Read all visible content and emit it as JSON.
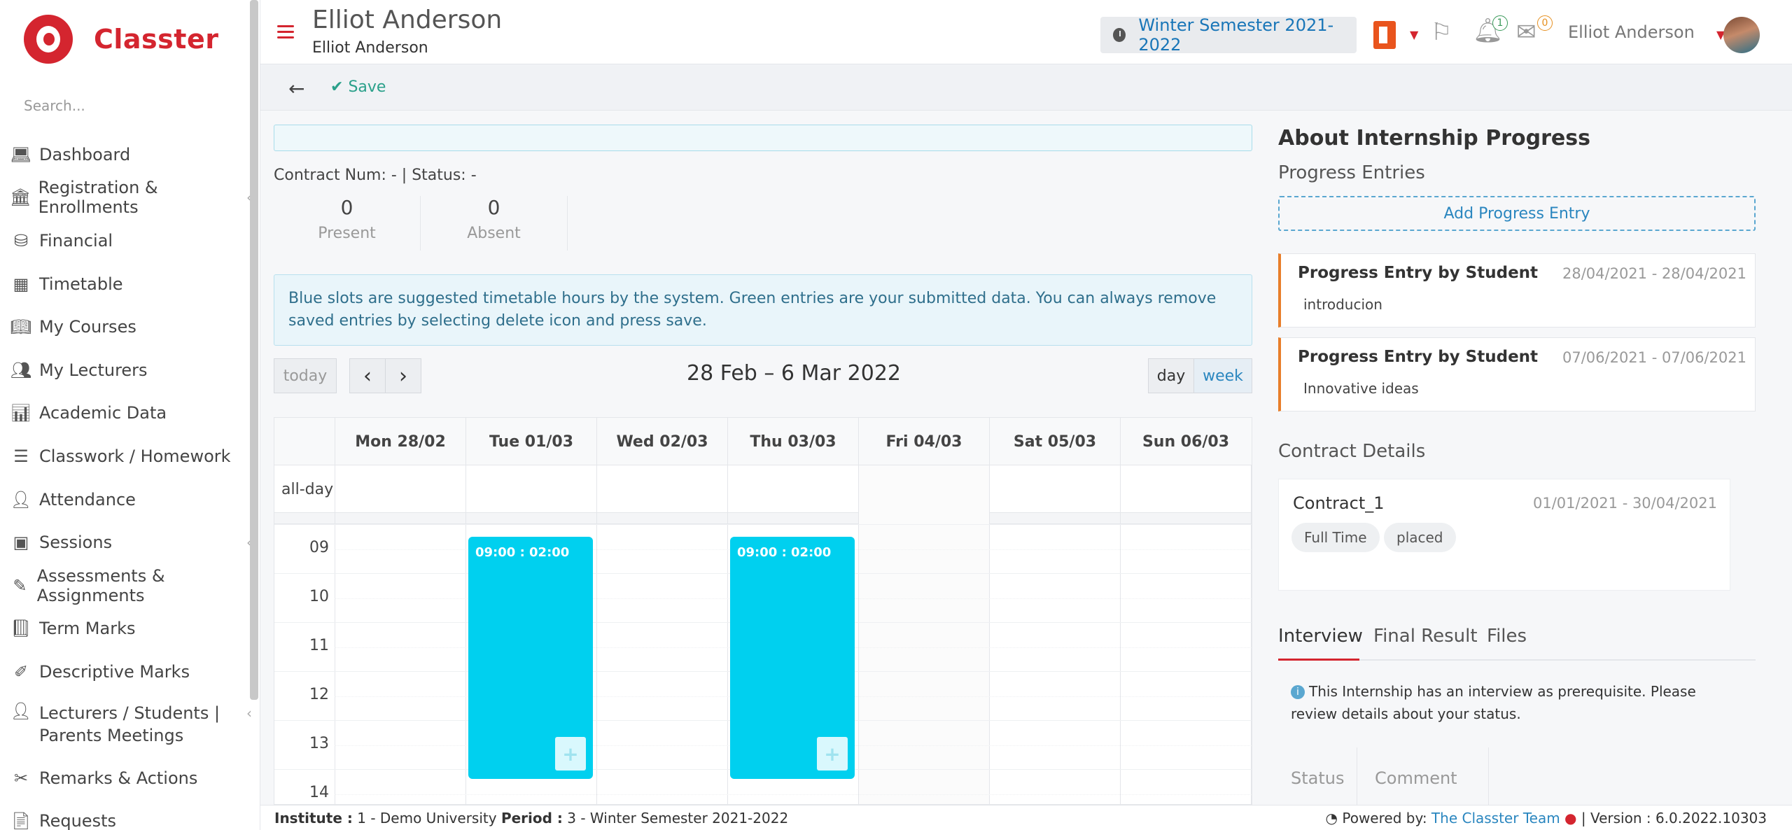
{
  "brand": {
    "name": "Classter"
  },
  "search": {
    "placeholder": "Search..."
  },
  "sidebar": {
    "items": [
      {
        "label": "Dashboard",
        "icon": "laptop-icon"
      },
      {
        "label": "Registration & Enrollments",
        "icon": "bank-icon"
      },
      {
        "label": "Financial",
        "icon": "coins-icon"
      },
      {
        "label": "Timetable",
        "icon": "calendar-icon"
      },
      {
        "label": "My Courses",
        "icon": "book-icon"
      },
      {
        "label": "My Lecturers",
        "icon": "users-icon"
      },
      {
        "label": "Academic Data",
        "icon": "chart-icon"
      },
      {
        "label": "Classwork / Homework",
        "icon": "list-icon"
      },
      {
        "label": "Attendance",
        "icon": "user-check-icon"
      },
      {
        "label": "Sessions",
        "icon": "presentation-icon"
      },
      {
        "label": "Assessments & Assignments",
        "icon": "edit-icon"
      },
      {
        "label": "Term Marks",
        "icon": "book-closed-icon"
      },
      {
        "label": "Descriptive Marks",
        "icon": "pen-icon"
      },
      {
        "label": "Lecturers / Students | Parents Meetings",
        "icon": "meeting-icon"
      },
      {
        "label": "Remarks & Actions",
        "icon": "tools-icon"
      },
      {
        "label": "Requests",
        "icon": "file-icon"
      }
    ]
  },
  "header": {
    "title": "Elliot Anderson",
    "subtitle": "Elliot Anderson",
    "semester": "Winter Semester 2021-2022",
    "notifications_count": "1",
    "messages_count": "0",
    "user_name": "Elliot Anderson"
  },
  "toolbar": {
    "save_label": "Save"
  },
  "contract": {
    "line": "Contract Num: -   | Status: -",
    "present_value": "0",
    "present_label": "Present",
    "absent_value": "0",
    "absent_label": "Absent"
  },
  "info": {
    "message": "Blue slots are suggested timetable hours by the system. Green entries are your submitted data. You can always remove saved entries by selecting delete icon and press save."
  },
  "calendar": {
    "today_label": "today",
    "prev_label": "‹",
    "next_label": "›",
    "title": "28 Feb – 6 Mar 2022",
    "day_label": "day",
    "week_label": "week",
    "allday_label": "all-day",
    "days": [
      "Mon 28/02",
      "Tue 01/03",
      "Wed 02/03",
      "Thu 03/03",
      "Fri 04/03",
      "Sat 05/03",
      "Sun 06/03"
    ],
    "hours": [
      "09",
      "10",
      "11",
      "12",
      "13",
      "14"
    ],
    "events": [
      {
        "day_index": 1,
        "label": "09:00 : 02:00"
      },
      {
        "day_index": 3,
        "label": "09:00 : 02:00"
      }
    ],
    "event_plus": "+"
  },
  "right_panel": {
    "title": "About Internship Progress",
    "progress_title": "Progress Entries",
    "add_entry_label": "Add Progress Entry",
    "entries": [
      {
        "title": "Progress Entry by Student",
        "dates": "28/04/2021 - 28/04/2021",
        "summary": "introducion"
      },
      {
        "title": "Progress Entry by Student",
        "dates": "07/06/2021 - 07/06/2021",
        "summary": "Innovative ideas"
      }
    ],
    "contract_details_title": "Contract Details",
    "contract": {
      "name": "Contract_1",
      "dates": "01/01/2021 - 30/04/2021",
      "tags": [
        "Full Time",
        "placed"
      ]
    },
    "tabs": [
      "Interview",
      "Final Result",
      "Files"
    ],
    "interview_info": "This Internship has an interview as prerequisite. Please review details about your status.",
    "table_headers": [
      "Status",
      "Comment"
    ]
  },
  "footer": {
    "institute_label": "Institute :",
    "institute_value": " 1 - Demo University ",
    "period_label": "Period :",
    "period_value": " 3 - Winter Semester 2021-2022",
    "powered_prefix": "Powered by: ",
    "powered_link": "The Classter Team",
    "version": " | Version : 6.0.2022.10303"
  },
  "colors": {
    "brand": "#d4252f",
    "accent": "#2a86bf",
    "event": "#00d0ef",
    "entry_border": "#e87e2a",
    "save": "#2aa08a"
  }
}
